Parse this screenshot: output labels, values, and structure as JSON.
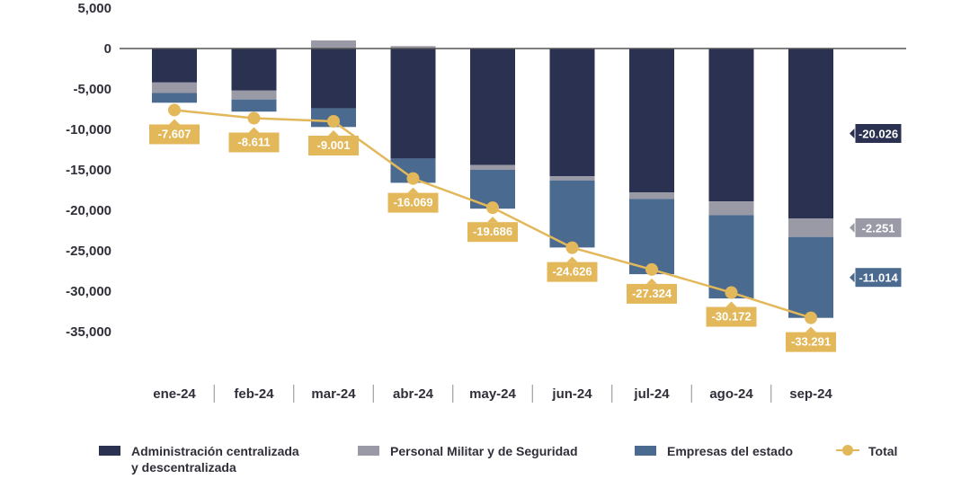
{
  "chart_data": {
    "type": "bar",
    "stacked": true,
    "categories": [
      "ene-24",
      "feb-24",
      "mar-24",
      "abr-24",
      "may-24",
      "jun-24",
      "jul-24",
      "ago-24",
      "sep-24"
    ],
    "series": [
      {
        "name": "Administración centralizada y descentralizada",
        "color": "#2b3150",
        "values": [
          -4200,
          -5200,
          -7400,
          -13600,
          -14400,
          -15800,
          -17800,
          -18900,
          -21000
        ]
      },
      {
        "name": "Personal Militar y de Seguridad",
        "color": "#9a9aa6",
        "values": [
          -1300,
          -1100,
          1000,
          300,
          -600,
          -500,
          -800,
          -1700,
          -2300
        ]
      },
      {
        "name": "Empresas del estado",
        "color": "#4a6a8f",
        "values": [
          -1200,
          -1500,
          -2300,
          -3000,
          -4800,
          -8300,
          -9300,
          -10300,
          -10000
        ]
      }
    ],
    "line_series": {
      "name": "Total",
      "color": "#e3b85a",
      "values": [
        -7607,
        -8611,
        -9001,
        -16069,
        -19686,
        -24626,
        -27324,
        -30172,
        -33291
      ],
      "labels": [
        "-7.607",
        "-8.611",
        "-9.001",
        "-16.069",
        "-19.686",
        "-24.626",
        "-27.324",
        "-30.172",
        "-33.291"
      ]
    },
    "side_labels": [
      {
        "text": "-20.026",
        "series": 0
      },
      {
        "text": "-2.251",
        "series": 1
      },
      {
        "text": "-11.014",
        "series": 2
      }
    ],
    "yticks": [
      5000,
      0,
      -5000,
      -10000,
      -15000,
      -20000,
      -25000,
      -30000,
      -35000
    ],
    "ytick_labels": [
      "5,000",
      "0",
      "-5,000",
      "-10,000",
      "-15,000",
      "-20,000",
      "-25,000",
      "-30,000",
      "-35,000"
    ],
    "ylim": [
      -35000,
      5000
    ],
    "grid": false,
    "legend_position": "bottom"
  },
  "legend": {
    "admin_line1": "Administración centralizada",
    "admin_line2": "y descentralizada",
    "militar": "Personal Militar y de Seguridad",
    "empresas": "Empresas del estado",
    "total": "Total"
  }
}
